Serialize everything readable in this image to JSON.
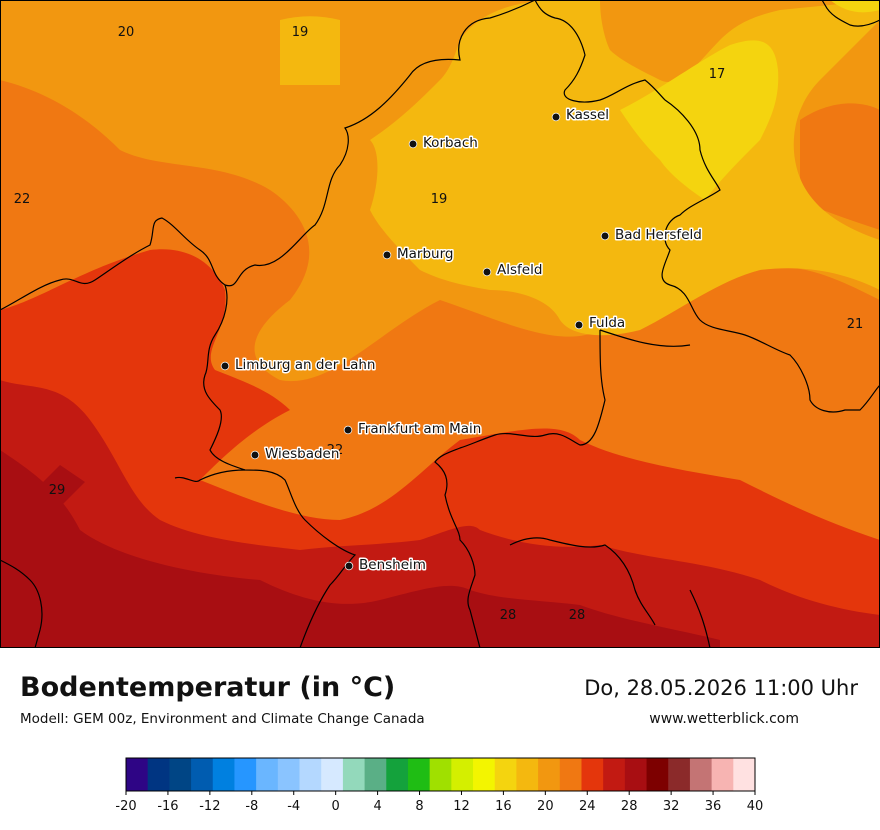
{
  "header": {
    "title": "Bodentemperatur (in °C)",
    "model": "Modell: GEM 00z, Environment and Climate Change Canada",
    "datetime": "Do, 28.05.2026 11:00 Uhr",
    "website": "www.wetterblick.com"
  },
  "cities": [
    {
      "name": "Kassel"
    },
    {
      "name": "Korbach"
    },
    {
      "name": "Bad Hersfeld"
    },
    {
      "name": "Marburg"
    },
    {
      "name": "Alsfeld"
    },
    {
      "name": "Fulda"
    },
    {
      "name": "Limburg an der Lahn"
    },
    {
      "name": "Frankfurt am Main"
    },
    {
      "name": "Wiesbaden"
    },
    {
      "name": "Bensheim"
    }
  ],
  "isoline_labels": [
    "20",
    "19",
    "17",
    "22",
    "19",
    "21",
    "22",
    "29",
    "28",
    "28"
  ],
  "legend": {
    "ticks": [
      "-20",
      "-16",
      "-12",
      "-8",
      "-4",
      "0",
      "4",
      "8",
      "12",
      "16",
      "20",
      "24",
      "28",
      "32",
      "36",
      "40"
    ],
    "colors": [
      "#2e0585",
      "#003582",
      "#004585",
      "#005cb0",
      "#0080e0",
      "#2696ff",
      "#6ab6ff",
      "#8ac4ff",
      "#b4d8ff",
      "#d6e9ff",
      "#93d9bb",
      "#5aaf86",
      "#14a23c",
      "#1fbd14",
      "#a0e000",
      "#d4ef00",
      "#f3f500",
      "#f4d40f",
      "#f4b80f",
      "#f29710",
      "#f07812",
      "#e4360c",
      "#c21a12",
      "#a80e12",
      "#7d0000",
      "#8b2a2a",
      "#c47474",
      "#f7b4b2",
      "#ffe1e1"
    ]
  }
}
